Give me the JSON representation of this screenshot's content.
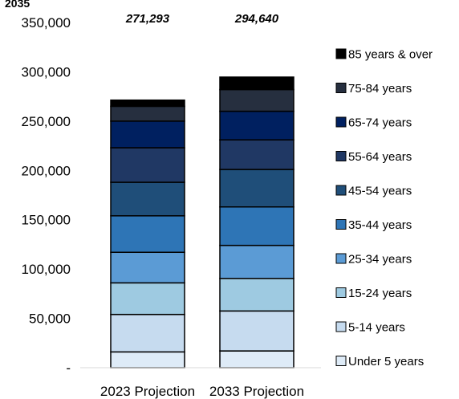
{
  "chart_data": {
    "type": "bar",
    "stacked": true,
    "title_fragment": "2035",
    "categories": [
      "2023 Projection",
      "2033 Projection"
    ],
    "totals": [
      "271,293",
      "294,640"
    ],
    "y_ticks": [
      "-",
      "50,000",
      "100,000",
      "150,000",
      "200,000",
      "250,000",
      "300,000",
      "350,000"
    ],
    "ylim": [
      0,
      350000
    ],
    "series": [
      {
        "name": "Under 5 years",
        "color": "#deebf7",
        "values": [
          16000,
          17000
        ]
      },
      {
        "name": "5-14 years",
        "color": "#c6dbef",
        "values": [
          38000,
          40500
        ]
      },
      {
        "name": "15-24 years",
        "color": "#9ecae1",
        "values": [
          32000,
          33000
        ]
      },
      {
        "name": "25-34 years",
        "color": "#5b9bd5",
        "values": [
          31000,
          33500
        ]
      },
      {
        "name": "35-44 years",
        "color": "#2e75b6",
        "values": [
          37000,
          39000
        ]
      },
      {
        "name": "45-54 years",
        "color": "#1f4e79",
        "values": [
          34000,
          38000
        ]
      },
      {
        "name": "55-64 years",
        "color": "#203864",
        "values": [
          35000,
          30000
        ]
      },
      {
        "name": "65-74 years",
        "color": "#002060",
        "values": [
          27000,
          29000
        ]
      },
      {
        "name": "75-84 years",
        "color": "#262f3f",
        "values": [
          15000,
          22000
        ]
      },
      {
        "name": "85 years & over",
        "color": "#000000",
        "values": [
          6293,
          12640
        ]
      }
    ],
    "legend_position": "right",
    "grid": false
  }
}
